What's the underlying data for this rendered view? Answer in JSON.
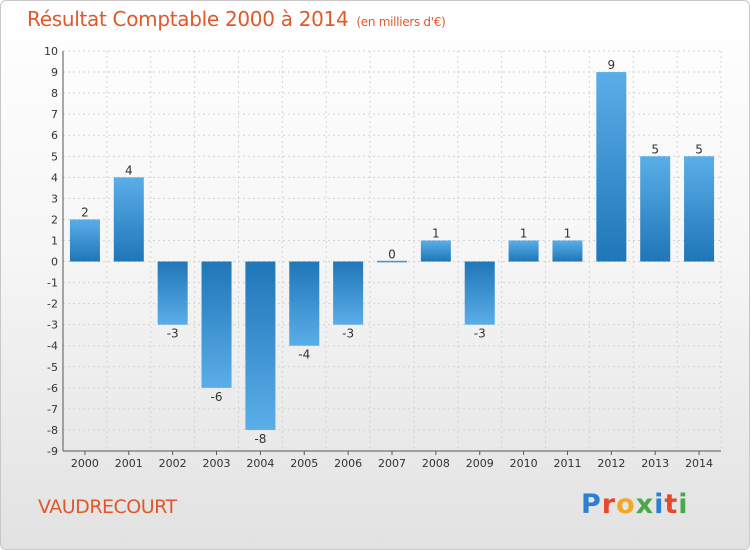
{
  "title": "Résultat Comptable 2000 à 2014",
  "subtitle": "(en milliers d'€)",
  "commune": "VAUDRECOURT",
  "logo": {
    "p": "P",
    "r": "r",
    "o": "o",
    "x": "x",
    "i": "i",
    "t": "t",
    "i2": "i"
  },
  "colors": {
    "title": "#e0582a",
    "bar_light": "#5aaee8",
    "bar_dark": "#1f76b8"
  },
  "chart_data": {
    "type": "bar",
    "title": "Résultat Comptable 2000 à 2014",
    "ylabel": "en milliers d'€",
    "xlabel": "",
    "categories": [
      "2000",
      "2001",
      "2002",
      "2003",
      "2004",
      "2005",
      "2006",
      "2007",
      "2008",
      "2009",
      "2010",
      "2011",
      "2012",
      "2013",
      "2014"
    ],
    "values": [
      2,
      4,
      -3,
      -6,
      -8,
      -4,
      -3,
      0,
      1,
      -3,
      1,
      1,
      9,
      5,
      5
    ],
    "ylim": [
      -9,
      10
    ],
    "yticks": [
      "10",
      "9",
      "8",
      "7",
      "6",
      "5",
      "4",
      "3",
      "2",
      "1",
      "0",
      "-1",
      "-2",
      "-3",
      "-4",
      "-5",
      "-6",
      "-7",
      "-8",
      "-9"
    ],
    "grid": true,
    "legend": "none"
  }
}
